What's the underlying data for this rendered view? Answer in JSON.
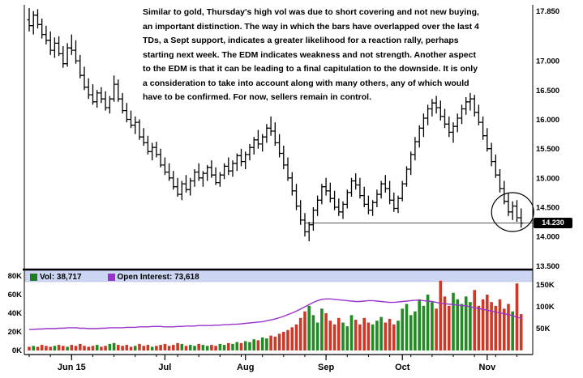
{
  "colors": {
    "background": "#ffffff",
    "bar": "#000000",
    "volume_up": "#238b23",
    "volume_down": "#cc3928",
    "open_interest_line": "#9933cc",
    "legend_strip": "#ccd6f2",
    "support_line": "#555555",
    "last_price_bg": "#000000",
    "last_price_fg": "#ffffff"
  },
  "annotation": {
    "lines": [
      "Similar to gold, Thursday's high vol was due to short covering and not new buying,",
      "an important distinction.  The way in which the bars have overlapped over the last 4",
      "TDs, a Sept support, indicates a greater likelihood for a reaction rally, perhaps",
      "starting next week.  The EDM indicates weakness and not strength.  Another aspect",
      "to the EDM is that it can be leading to a final capitulation to the downside.  It is only",
      "a consideration to take into account along with many others, any of which would",
      "have to be confirmed.  For now, sellers remain in control."
    ]
  },
  "legend": {
    "vol_label": "Vol: 38,717",
    "vol_color": "#1e7d1e",
    "oi_label": "Open Interest: 73,618",
    "oi_color": "#9933cc"
  },
  "axes": {
    "last_price_label": "14.230",
    "price_ticks": [
      [
        "17.850",
        17.85
      ],
      [
        "17.000",
        17.0
      ],
      [
        "16.500",
        16.5
      ],
      [
        "16.000",
        16.0
      ],
      [
        "15.500",
        15.5
      ],
      [
        "15.000",
        15.0
      ],
      [
        "14.500",
        14.5
      ],
      [
        "14.000",
        14.0
      ],
      [
        "13.500",
        13.5
      ]
    ],
    "volume_left_ticks": [
      [
        "80K",
        80
      ],
      [
        "60K",
        60
      ],
      [
        "40K",
        40
      ],
      [
        "20K",
        20
      ],
      [
        "0K",
        0
      ]
    ],
    "volume_right_ticks": [
      [
        "150K",
        150
      ],
      [
        "100K",
        100
      ],
      [
        "50K",
        50
      ]
    ],
    "months": [
      [
        "Jun 15",
        10
      ],
      [
        "Jul",
        32
      ],
      [
        "Aug",
        51
      ],
      [
        "Sep",
        70
      ],
      [
        "Oct",
        88
      ],
      [
        "Nov",
        108
      ]
    ]
  },
  "chart_data": {
    "type": "ohlc+volume",
    "title": "",
    "ylim_price": [
      13.45,
      17.9
    ],
    "ylim_volume_k": [
      0,
      80
    ],
    "ylim_open_interest_k": [
      50,
      150
    ],
    "current": {
      "price": 14.23,
      "volume": 38717,
      "open_interest": 73618
    },
    "bars_ohlc": [
      [
        17.7,
        17.9,
        17.5,
        17.6
      ],
      [
        17.6,
        17.85,
        17.45,
        17.78
      ],
      [
        17.78,
        17.88,
        17.55,
        17.62
      ],
      [
        17.62,
        17.72,
        17.38,
        17.45
      ],
      [
        17.45,
        17.6,
        17.28,
        17.35
      ],
      [
        17.35,
        17.5,
        17.1,
        17.18
      ],
      [
        17.18,
        17.4,
        17.05,
        17.3
      ],
      [
        17.3,
        17.42,
        17.08,
        17.12
      ],
      [
        17.12,
        17.25,
        16.88,
        16.95
      ],
      [
        16.95,
        17.3,
        16.9,
        17.22
      ],
      [
        17.22,
        17.45,
        17.1,
        17.18
      ],
      [
        17.18,
        17.35,
        16.95,
        17.0
      ],
      [
        17.0,
        17.1,
        16.7,
        16.75
      ],
      [
        16.75,
        16.9,
        16.5,
        16.55
      ],
      [
        16.55,
        16.7,
        16.35,
        16.42
      ],
      [
        16.42,
        16.6,
        16.25,
        16.3
      ],
      [
        16.3,
        16.5,
        16.2,
        16.45
      ],
      [
        16.45,
        16.55,
        16.28,
        16.35
      ],
      [
        16.35,
        16.48,
        16.15,
        16.2
      ],
      [
        16.2,
        16.4,
        16.1,
        16.35
      ],
      [
        16.35,
        16.75,
        16.3,
        16.6
      ],
      [
        16.6,
        16.68,
        16.3,
        16.35
      ],
      [
        16.35,
        16.45,
        16.1,
        16.15
      ],
      [
        16.15,
        16.28,
        15.95,
        16.0
      ],
      [
        16.0,
        16.15,
        15.85,
        15.9
      ],
      [
        15.9,
        16.05,
        15.75,
        15.95
      ],
      [
        15.95,
        16.0,
        15.65,
        15.7
      ],
      [
        15.7,
        15.85,
        15.55,
        15.6
      ],
      [
        15.6,
        15.72,
        15.4,
        15.45
      ],
      [
        15.45,
        15.6,
        15.3,
        15.52
      ],
      [
        15.52,
        15.62,
        15.35,
        15.4
      ],
      [
        15.4,
        15.5,
        15.18,
        15.22
      ],
      [
        15.22,
        15.35,
        15.05,
        15.1
      ],
      [
        15.1,
        15.25,
        14.95,
        15.0
      ],
      [
        15.0,
        15.12,
        14.8,
        14.85
      ],
      [
        14.85,
        15.0,
        14.68,
        14.72
      ],
      [
        14.72,
        14.95,
        14.62,
        14.9
      ],
      [
        14.9,
        15.05,
        14.75,
        14.8
      ],
      [
        14.8,
        15.0,
        14.7,
        14.95
      ],
      [
        14.95,
        15.15,
        14.85,
        15.1
      ],
      [
        15.1,
        15.25,
        14.95,
        15.0
      ],
      [
        15.0,
        15.12,
        14.85,
        15.08
      ],
      [
        15.08,
        15.22,
        14.95,
        15.18
      ],
      [
        15.18,
        15.3,
        15.0,
        15.05
      ],
      [
        15.05,
        15.18,
        14.88,
        14.92
      ],
      [
        14.92,
        15.1,
        14.85,
        15.05
      ],
      [
        15.05,
        15.25,
        14.98,
        15.2
      ],
      [
        15.2,
        15.35,
        15.05,
        15.12
      ],
      [
        15.12,
        15.3,
        15.02,
        15.25
      ],
      [
        15.25,
        15.42,
        15.12,
        15.38
      ],
      [
        15.38,
        15.5,
        15.2,
        15.28
      ],
      [
        15.28,
        15.45,
        15.15,
        15.4
      ],
      [
        15.4,
        15.58,
        15.3,
        15.52
      ],
      [
        15.52,
        15.7,
        15.4,
        15.65
      ],
      [
        15.65,
        15.82,
        15.5,
        15.58
      ],
      [
        15.58,
        15.75,
        15.45,
        15.7
      ],
      [
        15.7,
        15.92,
        15.6,
        15.85
      ],
      [
        15.85,
        16.05,
        15.72,
        15.8
      ],
      [
        15.8,
        15.95,
        15.55,
        15.6
      ],
      [
        15.6,
        15.75,
        15.35,
        15.42
      ],
      [
        15.42,
        15.55,
        15.15,
        15.22
      ],
      [
        15.22,
        15.35,
        14.95,
        15.0
      ],
      [
        15.0,
        15.1,
        14.7,
        14.78
      ],
      [
        14.78,
        14.9,
        14.45,
        14.52
      ],
      [
        14.52,
        14.62,
        14.2,
        14.28
      ],
      [
        14.28,
        14.4,
        14.0,
        14.08
      ],
      [
        14.08,
        14.25,
        13.92,
        14.2
      ],
      [
        14.2,
        14.5,
        14.1,
        14.45
      ],
      [
        14.45,
        14.7,
        14.35,
        14.62
      ],
      [
        14.62,
        14.9,
        14.55,
        14.85
      ],
      [
        14.85,
        15.0,
        14.7,
        14.78
      ],
      [
        14.78,
        14.92,
        14.58,
        14.65
      ],
      [
        14.65,
        14.78,
        14.45,
        14.5
      ],
      [
        14.5,
        14.65,
        14.35,
        14.42
      ],
      [
        14.42,
        14.6,
        14.3,
        14.55
      ],
      [
        14.55,
        14.8,
        14.48,
        14.75
      ],
      [
        14.75,
        15.0,
        14.68,
        14.95
      ],
      [
        14.95,
        15.08,
        14.8,
        14.88
      ],
      [
        14.88,
        15.0,
        14.65,
        14.7
      ],
      [
        14.7,
        14.85,
        14.5,
        14.55
      ],
      [
        14.55,
        14.7,
        14.38,
        14.45
      ],
      [
        14.45,
        14.62,
        14.35,
        14.58
      ],
      [
        14.58,
        14.8,
        14.5,
        14.72
      ],
      [
        14.72,
        14.95,
        14.65,
        14.9
      ],
      [
        14.9,
        15.05,
        14.75,
        14.82
      ],
      [
        14.82,
        14.95,
        14.55,
        14.62
      ],
      [
        14.62,
        14.75,
        14.42,
        14.48
      ],
      [
        14.48,
        14.7,
        14.4,
        14.65
      ],
      [
        14.65,
        14.95,
        14.6,
        14.9
      ],
      [
        14.9,
        15.2,
        14.85,
        15.15
      ],
      [
        15.15,
        15.45,
        15.05,
        15.4
      ],
      [
        15.4,
        15.7,
        15.3,
        15.62
      ],
      [
        15.62,
        15.9,
        15.52,
        15.85
      ],
      [
        15.85,
        16.1,
        15.7,
        16.02
      ],
      [
        16.02,
        16.25,
        15.9,
        16.18
      ],
      [
        16.18,
        16.35,
        16.05,
        16.28
      ],
      [
        16.28,
        16.4,
        16.1,
        16.2
      ],
      [
        16.2,
        16.32,
        15.98,
        16.05
      ],
      [
        16.05,
        16.18,
        15.85,
        15.92
      ],
      [
        15.92,
        16.05,
        15.7,
        15.78
      ],
      [
        15.78,
        15.95,
        15.6,
        15.88
      ],
      [
        15.88,
        16.1,
        15.78,
        16.02
      ],
      [
        16.02,
        16.25,
        15.92,
        16.18
      ],
      [
        16.18,
        16.38,
        16.08,
        16.3
      ],
      [
        16.3,
        16.45,
        16.15,
        16.35
      ],
      [
        16.35,
        16.42,
        16.05,
        16.12
      ],
      [
        16.12,
        16.25,
        15.9,
        15.95
      ],
      [
        15.95,
        16.05,
        15.65,
        15.72
      ],
      [
        15.72,
        15.85,
        15.45,
        15.5
      ],
      [
        15.5,
        15.6,
        15.2,
        15.28
      ],
      [
        15.28,
        15.4,
        15.0,
        15.05
      ],
      [
        15.05,
        15.15,
        14.75,
        14.82
      ],
      [
        14.82,
        14.95,
        14.55,
        14.6
      ],
      [
        14.6,
        14.75,
        14.35,
        14.42
      ],
      [
        14.42,
        14.6,
        14.28,
        14.52
      ],
      [
        14.52,
        14.62,
        14.25,
        14.32
      ],
      [
        14.32,
        14.48,
        14.15,
        14.23
      ]
    ],
    "volume_k": [
      4,
      5,
      4,
      6,
      5,
      4,
      5,
      6,
      5,
      4,
      6,
      5,
      7,
      5,
      4,
      5,
      6,
      4,
      5,
      7,
      8,
      6,
      5,
      6,
      4,
      5,
      7,
      5,
      6,
      4,
      5,
      6,
      7,
      5,
      6,
      8,
      7,
      5,
      6,
      5,
      7,
      6,
      5,
      6,
      5,
      7,
      6,
      8,
      7,
      9,
      8,
      10,
      9,
      12,
      11,
      14,
      13,
      16,
      15,
      18,
      20,
      22,
      25,
      28,
      35,
      42,
      48,
      38,
      30,
      45,
      40,
      32,
      28,
      35,
      30,
      26,
      38,
      33,
      28,
      35,
      30,
      28,
      32,
      36,
      30,
      34,
      28,
      32,
      45,
      50,
      38,
      42,
      55,
      48,
      60,
      52,
      45,
      75,
      58,
      48,
      62,
      55,
      50,
      58,
      52,
      65,
      48,
      55,
      60,
      52,
      48,
      55,
      45,
      50,
      42,
      72,
      39
    ],
    "open_interest_k": [
      48,
      48,
      49,
      49,
      50,
      50,
      50,
      51,
      51,
      52,
      52,
      52,
      51,
      51,
      50,
      50,
      50,
      51,
      51,
      52,
      52,
      52,
      52,
      53,
      53,
      53,
      54,
      54,
      54,
      55,
      55,
      55,
      54,
      54,
      54,
      55,
      55,
      56,
      56,
      56,
      57,
      57,
      57,
      57,
      58,
      58,
      59,
      59,
      60,
      60,
      61,
      62,
      63,
      64,
      65,
      66,
      68,
      70,
      72,
      75,
      78,
      82,
      86,
      90,
      95,
      100,
      105,
      110,
      114,
      117,
      118,
      118,
      117,
      116,
      115,
      114,
      113,
      112,
      112,
      113,
      114,
      114,
      113,
      112,
      111,
      110,
      110,
      111,
      112,
      113,
      114,
      115,
      115,
      114,
      113,
      112,
      110,
      108,
      107,
      106,
      105,
      104,
      103,
      102,
      100,
      98,
      96,
      94,
      92,
      90,
      88,
      86,
      84,
      82,
      80,
      76,
      74
    ],
    "annotations": {
      "support_line": {
        "price": 14.23,
        "from_bar": 65
      },
      "ellipse": {
        "from_bar": 112,
        "to_bar": 116
      }
    }
  }
}
